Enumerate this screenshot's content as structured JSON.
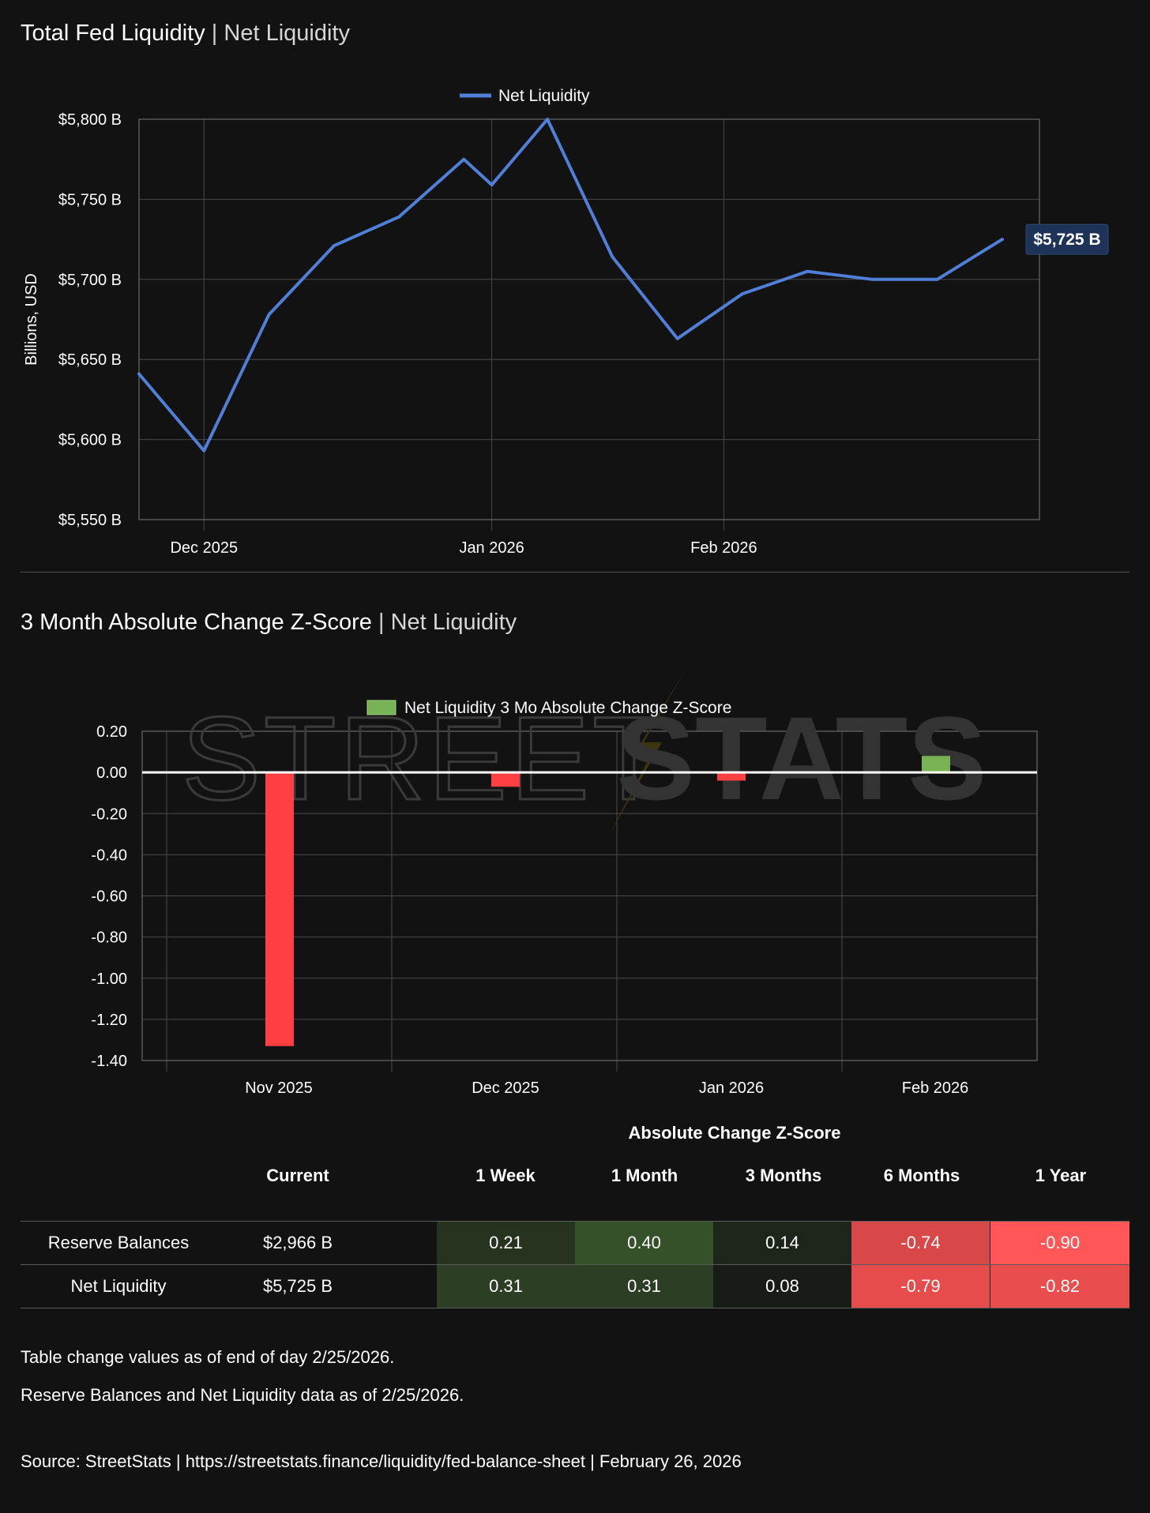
{
  "colors": {
    "background": "#121212",
    "line": "#4f7fd6",
    "bar_negative": "#ff3f41",
    "bar_positive": "#77b255",
    "label_badge": "#1e3358"
  },
  "section1": {
    "title_main": "Total Fed Liquidity",
    "separator": " | ",
    "title_sub": "Net Liquidity"
  },
  "section2": {
    "title_main": "3 Month Absolute Change Z-Score",
    "separator": " | ",
    "title_sub": "Net Liquidity"
  },
  "watermark": {
    "text_light": "STREET",
    "text_bold": "STATS"
  },
  "chart_data": [
    {
      "type": "line",
      "title": "Total Fed Liquidity | Net Liquidity",
      "ylabel": "Billions, USD",
      "xlabel": "",
      "legend": "top-center",
      "grid": true,
      "ylim": [
        5550,
        5800
      ],
      "y_ticks": [
        5550,
        5600,
        5650,
        5700,
        5750,
        5800
      ],
      "y_tick_labels": [
        "$5,550 B",
        "$5,600 B",
        "$5,650 B",
        "$5,700 B",
        "$5,750 B",
        "$5,800 B"
      ],
      "x_range": [
        "2025-11-24",
        "2026-03-01"
      ],
      "x_ticks": [
        "2025-12-01",
        "2026-01-01",
        "2026-01-26"
      ],
      "x_tick_labels": [
        "Dec 2025",
        "Jan 2026",
        "Feb 2026"
      ],
      "series": [
        {
          "name": "Net Liquidity",
          "x": [
            "2025-11-24",
            "2025-12-01",
            "2025-12-08",
            "2025-12-15",
            "2025-12-22",
            "2025-12-29",
            "2026-01-01",
            "2026-01-07",
            "2026-01-14",
            "2026-01-21",
            "2026-01-28",
            "2026-02-04",
            "2026-02-11",
            "2026-02-18",
            "2026-02-25"
          ],
          "values": [
            5641,
            5593,
            5678,
            5721,
            5739,
            5775,
            5759,
            5800,
            5714,
            5663,
            5691,
            5705,
            5700,
            5700,
            5725
          ]
        }
      ],
      "last_value_label": "$5,725 B"
    },
    {
      "type": "bar",
      "title": "3 Month Absolute Change Z-Score | Net Liquidity",
      "xlabel": "",
      "ylabel": "",
      "legend": "top-center",
      "grid": true,
      "ylim": [
        -1.4,
        0.2
      ],
      "y_ticks": [
        0.2,
        0.0,
        -0.2,
        -0.4,
        -0.6,
        -0.8,
        -1.0,
        -1.2,
        -1.4
      ],
      "y_tick_labels": [
        "0.20",
        "0.00",
        "-0.20",
        "-0.40",
        "-0.60",
        "-0.80",
        "-1.00",
        "-1.20",
        "-1.40"
      ],
      "categories": [
        "Nov 2025",
        "Dec 2025",
        "Jan 2026",
        "Feb 2026"
      ],
      "series": [
        {
          "name": "Net Liquidity 3 Mo Absolute Change Z-Score",
          "values": [
            -1.33,
            -0.07,
            -0.04,
            0.08
          ]
        }
      ]
    }
  ],
  "table": {
    "super_header": "Absolute Change Z-Score",
    "columns": [
      "",
      "Current",
      "1 Week",
      "1 Month",
      "3 Months",
      "6 Months",
      "1 Year"
    ],
    "rows": [
      {
        "label": "Reserve Balances",
        "current": "$2,966 B",
        "values": [
          "0.21",
          "0.40",
          "0.14",
          "-0.74",
          "-0.90"
        ],
        "colors": [
          "#26331f",
          "#35512a",
          "#1d2419",
          "#d94848",
          "#ff5757"
        ]
      },
      {
        "label": "Net Liquidity",
        "current": "$5,725 B",
        "values": [
          "0.31",
          "0.31",
          "0.08",
          "-0.79",
          "-0.82"
        ],
        "colors": [
          "#2c3e24",
          "#2c3e24",
          "#181c16",
          "#e64c4c",
          "#ea4d4d"
        ]
      }
    ]
  },
  "notes": {
    "line1": "Table change values as of end of day 2/25/2026.",
    "line2": "Reserve Balances and Net Liquidity data as of 2/25/2026.",
    "source": "Source:  StreetStats  |  https://streetstats.finance/liquidity/fed-balance-sheet  |  February 26, 2026"
  }
}
